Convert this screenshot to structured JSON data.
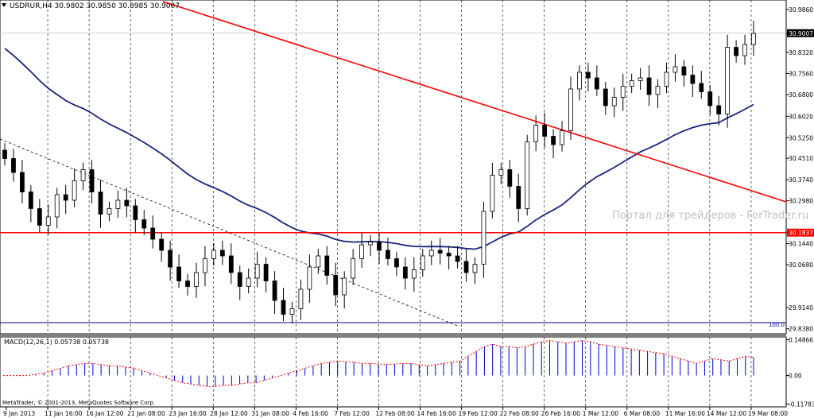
{
  "header": {
    "symbol_line": "USDRUR,H4  30.9802 30.9850 30.8985 30.9007"
  },
  "watermark": "Портал для трейдеров - ForTrader.ru",
  "macd_label": "MACD(12,26,1) 0.05738 0.05738",
  "copyright": "MetaTrader, © 2001-2013, MetaQuotes Software Corp.",
  "level_label": "100.0",
  "colors": {
    "bullish": "#ffffff",
    "bearish": "#000000",
    "ma": "#1a237e",
    "trendline": "#ff0000",
    "hline": "#ff0000",
    "level": "#00008b",
    "macd_hist": "#0000cd",
    "macd_signal": "#ff0000"
  },
  "chart_data": [
    {
      "type": "candlestick",
      "symbol": "USDRUR",
      "timeframe": "H4",
      "ohlc_current": {
        "open": 30.9802,
        "high": 30.985,
        "low": 30.8985,
        "close": 30.9007
      },
      "y_ticks": [
        "30.9860",
        "30.9007",
        "30.8320",
        "30.7560",
        "30.6800",
        "30.6020",
        "30.5250",
        "30.4510",
        "30.3740",
        "30.2980",
        "30.1837",
        "30.1440",
        "30.0680",
        "29.9140",
        "29.8380"
      ],
      "ylim": [
        29.82,
        31.02
      ],
      "x_ticks": [
        "9 Jan 2013",
        "11 Jan 16:00",
        "16 Jan 12:00",
        "21 Jan 08:00",
        "23 Jan 16:00",
        "28 Jan 12:00",
        "31 Jan 08:00",
        "4 Feb 16:00",
        "7 Feb 12:00",
        "12 Feb 08:00",
        "14 Feb 16:00",
        "19 Feb 12:00",
        "22 Feb 08:00",
        "26 Feb 16:00",
        "1 Mar 12:00",
        "6 Mar 08:00",
        "11 Mar 16:00",
        "14 Mar 12:00",
        "19 Mar 08:00"
      ],
      "current_price": 30.9007,
      "horizontal_line": 30.1837,
      "level_line": 29.86,
      "close_series": [
        30.45,
        30.4,
        30.33,
        30.27,
        30.21,
        30.24,
        30.32,
        30.3,
        30.37,
        30.41,
        30.33,
        30.25,
        30.27,
        30.3,
        30.28,
        30.23,
        30.2,
        30.16,
        30.12,
        30.06,
        30.01,
        29.99,
        30.04,
        30.09,
        30.12,
        30.1,
        30.04,
        29.99,
        30.02,
        30.07,
        30.01,
        29.94,
        29.89,
        29.91,
        29.98,
        30.06,
        30.1,
        30.03,
        29.96,
        30.02,
        30.09,
        30.14,
        30.15,
        30.12,
        30.09,
        30.06,
        30.02,
        30.05,
        30.1,
        30.12,
        30.11,
        30.1,
        30.08,
        30.04,
        30.07,
        30.26,
        30.39,
        30.41,
        30.35,
        30.27,
        30.51,
        30.57,
        30.53,
        30.5,
        30.55,
        30.7,
        30.76,
        30.74,
        30.7,
        30.64,
        30.67,
        30.71,
        30.73,
        30.74,
        30.68,
        30.71,
        30.76,
        30.78,
        30.75,
        30.72,
        30.69,
        30.64,
        30.61,
        30.85,
        30.82,
        30.86,
        30.9
      ]
    },
    {
      "type": "line",
      "name": "MACD(12,26,1)",
      "values": [
        0.0,
        0.0,
        0.0,
        0.0,
        0.005,
        0.01,
        0.02,
        0.03,
        0.04,
        0.045,
        0.05,
        0.05,
        0.045,
        0.04,
        0.04,
        0.035,
        0.03,
        0.02,
        0.01,
        0.0,
        -0.01,
        -0.02,
        -0.03,
        -0.035,
        -0.04,
        -0.045,
        -0.045,
        -0.04,
        -0.04,
        -0.035,
        -0.03,
        -0.03,
        -0.02,
        -0.01,
        0.0,
        0.01,
        0.02,
        0.03,
        0.04,
        0.05,
        0.055,
        0.06,
        0.058,
        0.055,
        0.05,
        0.05,
        0.048,
        0.045,
        0.048,
        0.05,
        0.05,
        0.045,
        0.04,
        0.045,
        0.05,
        0.055,
        0.06,
        0.08,
        0.1,
        0.12,
        0.13,
        0.12,
        0.12,
        0.115,
        0.12,
        0.13,
        0.14,
        0.145,
        0.14,
        0.135,
        0.14,
        0.145,
        0.14,
        0.13,
        0.125,
        0.12,
        0.115,
        0.11,
        0.105,
        0.1,
        0.095,
        0.09,
        0.08,
        0.07,
        0.06,
        0.05,
        0.06,
        0.07,
        0.065,
        0.06,
        0.07,
        0.08,
        0.075
      ],
      "ylim": [
        -0.13,
        0.16
      ],
      "y_ticks": [
        "0.14866",
        "0.00",
        "-0.11783"
      ]
    }
  ]
}
